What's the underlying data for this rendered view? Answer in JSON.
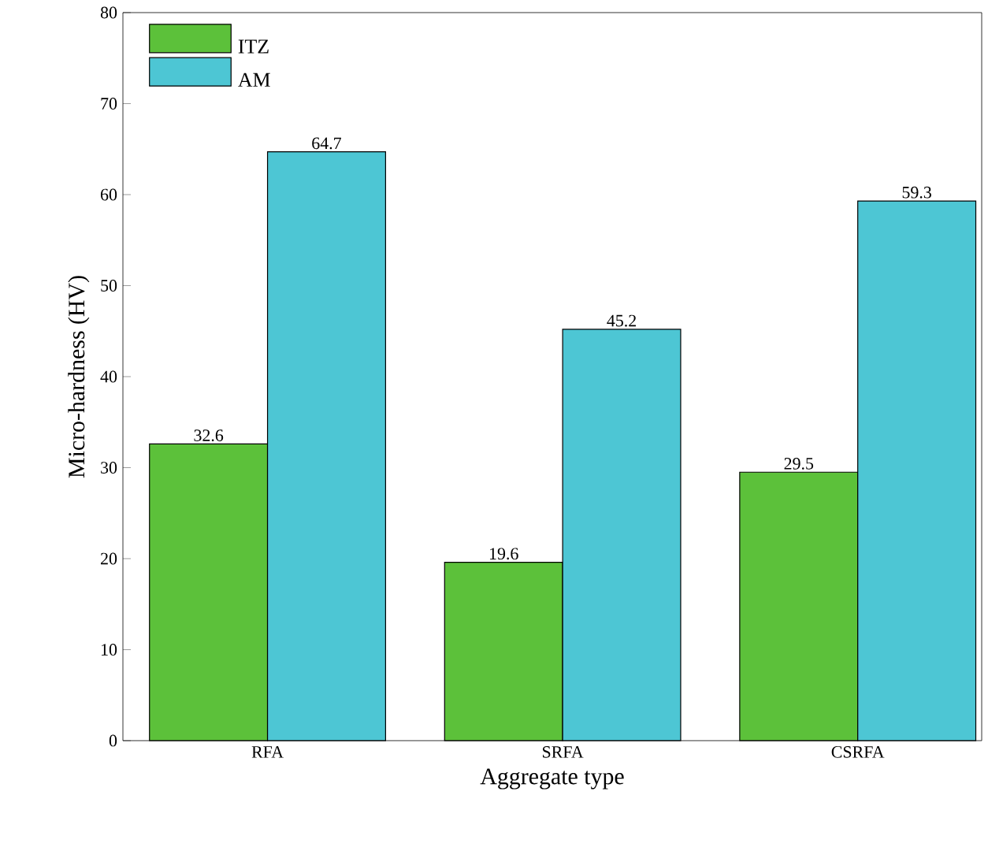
{
  "chart_data": {
    "type": "bar",
    "xlabel": "Aggregate type",
    "ylabel": "Micro-hardness (HV)",
    "categories": [
      "RFA",
      "SRFA",
      "CSRFA"
    ],
    "series": [
      {
        "name": "ITZ",
        "color": "#5cc13a",
        "values": [
          32.6,
          19.6,
          29.5
        ]
      },
      {
        "name": "AM",
        "color": "#4dc6d4",
        "values": [
          64.7,
          45.2,
          59.3
        ]
      }
    ],
    "ylim": [
      0,
      80
    ],
    "yticks": [
      0,
      10,
      20,
      30,
      40,
      50,
      60,
      70,
      80
    ],
    "data_labels": true,
    "legend": "top left"
  }
}
